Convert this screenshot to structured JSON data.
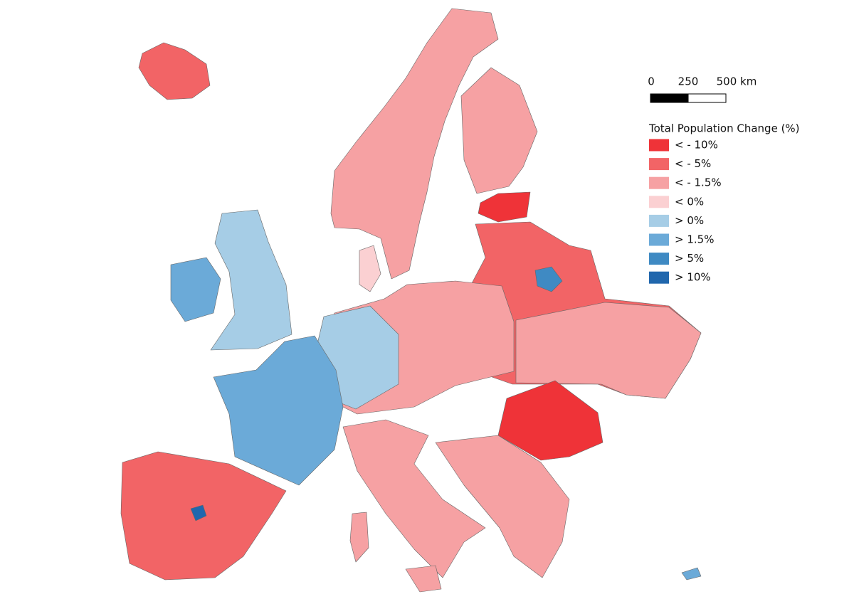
{
  "scale_bar": {
    "labels": [
      "0",
      "250",
      "500 km"
    ]
  },
  "legend": {
    "title": "Total Population Change (%)",
    "items": [
      {
        "label": "< - 10%",
        "color": "#ef3338"
      },
      {
        "label": "< - 5%",
        "color": "#f26466"
      },
      {
        "label": "< - 1.5%",
        "color": "#f6a1a3"
      },
      {
        "label": "< 0%",
        "color": "#fbd0d2"
      },
      {
        "label": "> 0%",
        "color": "#a6cde6"
      },
      {
        "label": "> 1.5%",
        "color": "#6baad8"
      },
      {
        "label": "> 5%",
        "color": "#3f8ac3"
      },
      {
        "label": "> 10%",
        "color": "#2167ad"
      }
    ]
  }
}
